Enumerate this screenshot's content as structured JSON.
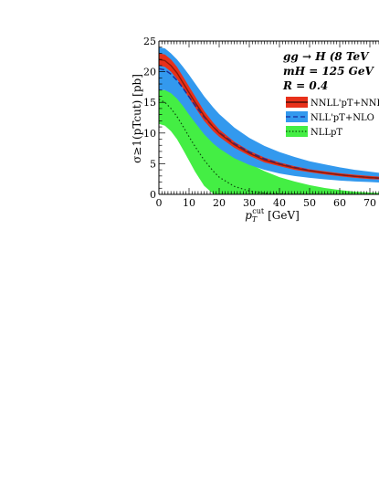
{
  "chart_data": {
    "type": "area",
    "xlabel_main": "p",
    "xlabel_sub": "T",
    "xlabel_sup": "cut",
    "xlabel_unit": "[GeV]",
    "ylabel": "σ≥1(pTcut) [pb]",
    "xlim": [
      0,
      75
    ],
    "ylim": [
      0,
      25
    ],
    "x_ticks": [
      0,
      10,
      20,
      30,
      40,
      50,
      60,
      70
    ],
    "y_ticks": [
      0,
      5,
      10,
      15,
      20,
      25
    ],
    "annotations": [
      "gg → H (8 TeV",
      "mH = 125 GeV",
      "R = 0.4"
    ],
    "x": [
      0,
      2,
      4,
      6,
      8,
      10,
      12,
      15,
      18,
      20,
      25,
      30,
      35,
      40,
      45,
      50,
      55,
      60,
      65,
      70,
      75
    ],
    "series": [
      {
        "name": "NNLL'pT+NNLO",
        "color": "#e8301a",
        "central": [
          22.0,
          21.8,
          21.0,
          19.8,
          18.2,
          16.6,
          15.0,
          12.8,
          11.0,
          10.0,
          8.1,
          6.7,
          5.6,
          4.9,
          4.3,
          3.85,
          3.5,
          3.2,
          2.95,
          2.75,
          2.6
        ],
        "upper": [
          23.0,
          22.8,
          22.0,
          20.8,
          19.2,
          17.6,
          16.0,
          13.6,
          11.7,
          10.6,
          8.6,
          7.1,
          6.0,
          5.2,
          4.6,
          4.1,
          3.75,
          3.45,
          3.2,
          3.0,
          2.8
        ],
        "lower": [
          21.0,
          20.8,
          20.0,
          18.8,
          17.3,
          15.7,
          14.2,
          12.0,
          10.3,
          9.4,
          7.6,
          6.3,
          5.2,
          4.6,
          4.0,
          3.6,
          3.25,
          2.95,
          2.7,
          2.5,
          2.4
        ]
      },
      {
        "name": "NLL'pT+NLO",
        "color": "#3399ee",
        "central": [
          20.5,
          20.3,
          19.6,
          18.6,
          17.3,
          15.9,
          14.5,
          12.6,
          11.0,
          10.1,
          8.3,
          6.9,
          5.8,
          5.0,
          4.4,
          3.9,
          3.5,
          3.2,
          2.95,
          2.75,
          2.55
        ],
        "upper": [
          24.0,
          23.8,
          23.0,
          22.0,
          20.8,
          19.5,
          18.1,
          16.0,
          14.2,
          13.1,
          10.9,
          9.2,
          7.9,
          6.9,
          6.1,
          5.4,
          4.9,
          4.4,
          4.0,
          3.7,
          3.4
        ],
        "lower": [
          17.0,
          17.0,
          16.5,
          15.6,
          14.4,
          13.0,
          11.7,
          9.8,
          8.3,
          7.5,
          5.9,
          4.8,
          4.0,
          3.4,
          3.0,
          2.7,
          2.45,
          2.25,
          2.1,
          2.0,
          1.9
        ]
      },
      {
        "name": "NLLpT",
        "color": "#44ee44",
        "central": [
          15.5,
          15.0,
          14.0,
          12.7,
          11.1,
          9.4,
          7.8,
          5.6,
          3.8,
          2.8,
          1.3,
          0.55,
          0.2,
          0.08,
          0.03,
          0.01,
          0,
          0,
          0,
          0,
          0
        ],
        "upper": [
          17.0,
          17.0,
          16.8,
          16.2,
          15.3,
          14.2,
          13.0,
          11.2,
          9.6,
          8.6,
          6.6,
          5.0,
          3.8,
          2.8,
          2.1,
          1.5,
          1.05,
          0.7,
          0.45,
          0.3,
          0.2
        ],
        "lower": [
          11.5,
          11.2,
          10.3,
          9.0,
          7.3,
          5.5,
          3.7,
          1.4,
          0.1,
          0,
          0,
          0,
          0,
          0,
          0,
          0,
          0,
          0,
          0,
          0,
          0
        ]
      }
    ],
    "legend": [
      "NNLL'pT+NNLO",
      "NLL'pT+NLO",
      "NLLpT"
    ],
    "legend_placement": "right"
  }
}
